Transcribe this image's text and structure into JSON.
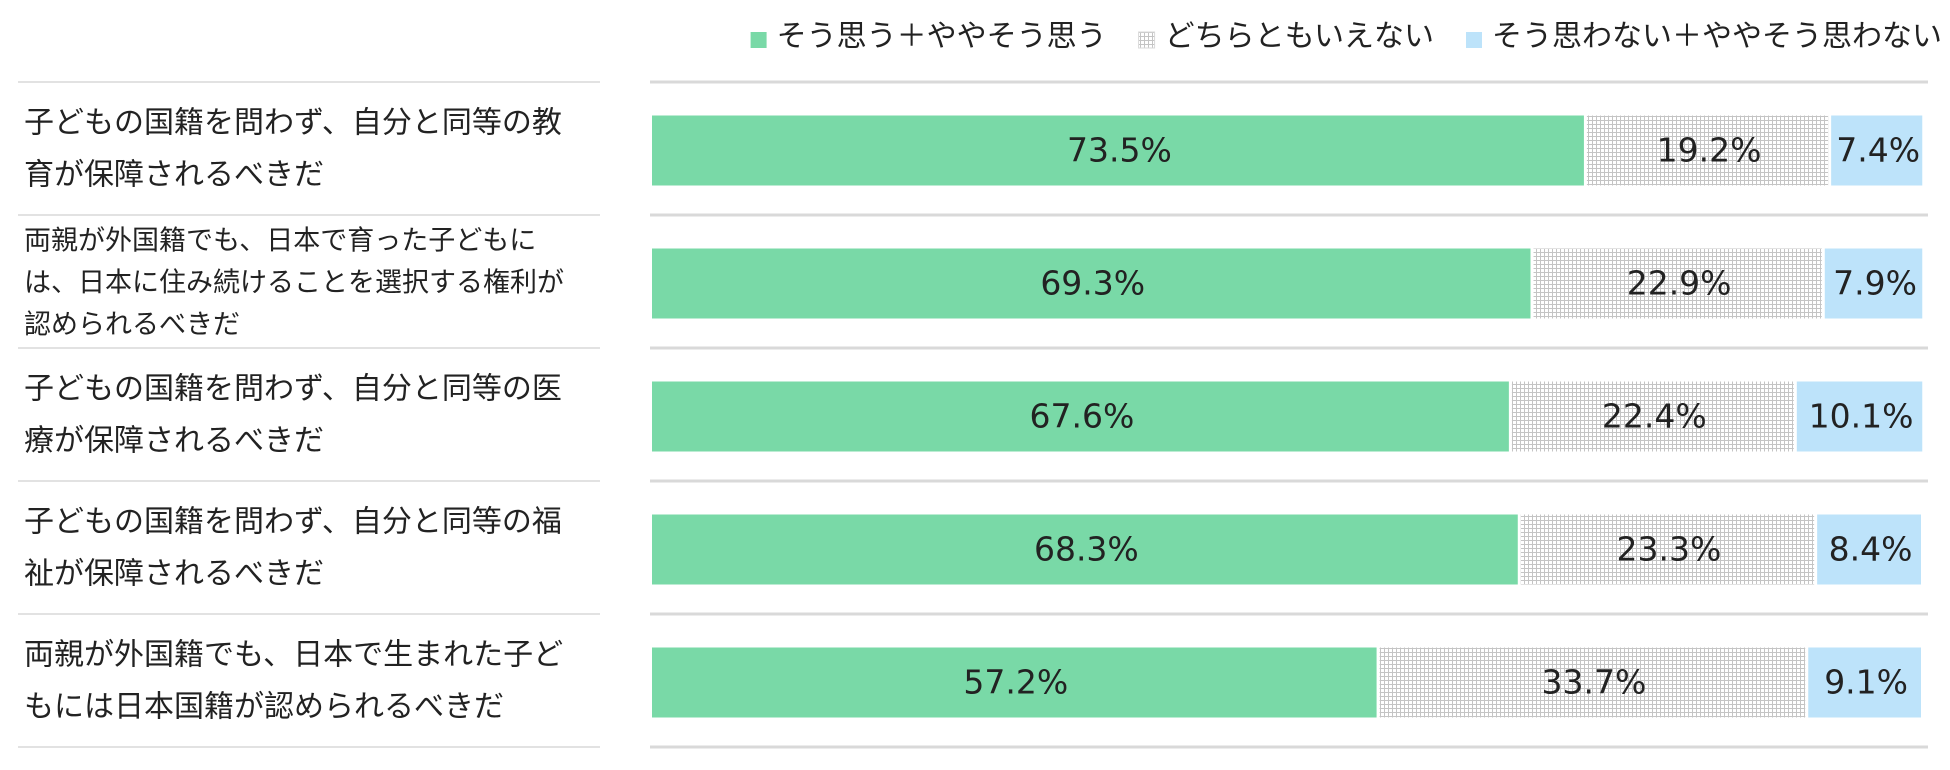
{
  "chart_data": {
    "type": "bar",
    "stacked": true,
    "orientation": "horizontal",
    "percent": true,
    "xlim": [
      0,
      100
    ],
    "categories": [
      [
        "子どもの国籍を問わず、自分と同等の教",
        "育が保障されるべきだ"
      ],
      [
        "両親が外国籍でも、日本で育った子どもに",
        "は、日本に住み続けることを選択する権利が",
        "認められるべきだ"
      ],
      [
        "子どもの国籍を問わず、自分と同等の医",
        "療が保障されるべきだ"
      ],
      [
        "子どもの国籍を問わず、自分と同等の福",
        "祉が保障されるべきだ"
      ],
      [
        "両親が外国籍でも、日本で生まれた子ど",
        "もには日本国籍が認められるべきだ"
      ]
    ],
    "series": [
      {
        "name": "そう思う＋ややそう思う",
        "color": "#79d9a7",
        "pattern": "solid",
        "values": [
          73.5,
          69.3,
          67.6,
          68.3,
          57.2
        ],
        "labels": [
          "73.5%",
          "69.3%",
          "67.6%",
          "68.3%",
          "57.2%"
        ]
      },
      {
        "name": "どちらともいえない",
        "color": "#d0d0d0",
        "pattern": "grid",
        "values": [
          19.2,
          22.9,
          22.4,
          23.3,
          33.7
        ],
        "labels": [
          "19.2%",
          "22.9%",
          "22.4%",
          "23.3%",
          "33.7%"
        ]
      },
      {
        "name": "そう思わない＋ややそう思わない",
        "color": "#bde3fa",
        "pattern": "solid",
        "values": [
          7.4,
          7.9,
          10.1,
          8.4,
          9.1
        ],
        "labels": [
          "7.4%",
          "7.9%",
          "10.1%",
          "8.4%",
          "9.1%"
        ]
      }
    ],
    "legend": "top-right",
    "grid": false
  }
}
